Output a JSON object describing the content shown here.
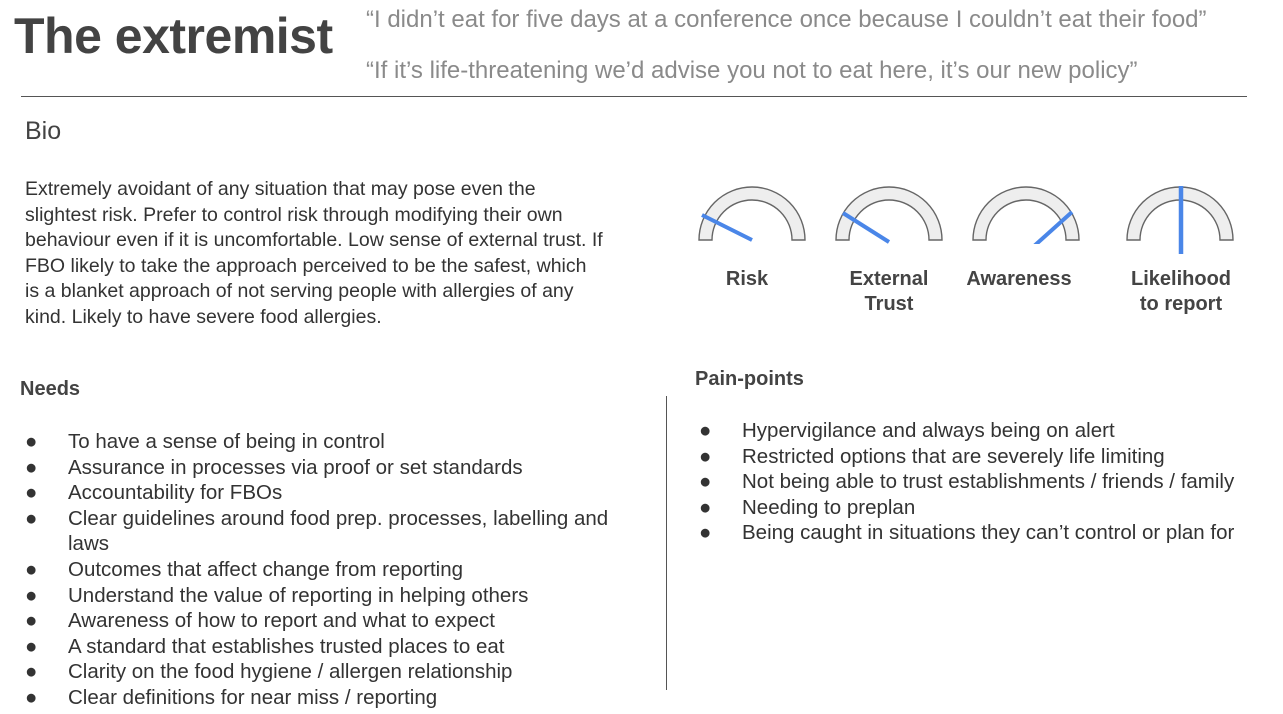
{
  "title": "The extremist",
  "quotes": [
    "“I didn’t eat for five days at a conference once because I couldn’t eat their food”",
    "“If it’s life-threatening we’d advise you not to eat here, it’s our new policy”"
  ],
  "bio": {
    "heading": "Bio",
    "text": "Extremely avoidant of any situation that may pose even the slightest risk. Prefer to control risk through modifying their own behaviour even if it is uncomfortable. Low sense of external trust. If FBO likely to take the approach perceived to be the safest, which is a blanket approach of not serving people with allergies of any kind. Likely to have severe food allergies."
  },
  "gauges": [
    {
      "label_line1": "Risk",
      "label_line2": "",
      "needle_color": "#4a86e8"
    },
    {
      "label_line1": "External",
      "label_line2": "Trust",
      "needle_color": "#4a86e8"
    },
    {
      "label_line1": "Awareness",
      "label_line2": "",
      "needle_color": "#4a86e8"
    },
    {
      "label_line1": "Likelihood",
      "label_line2": "to report",
      "needle_color": "#4a86e8"
    }
  ],
  "needs": {
    "heading": "Needs",
    "items": [
      "To have a sense of being in control",
      "Assurance in processes via proof or set standards",
      "Accountability for FBOs",
      "Clear guidelines around food prep. processes, labelling and laws",
      "Outcomes that affect change from reporting",
      "Understand the value of reporting in helping others",
      "Awareness of how to report and what to expect",
      "A standard that establishes trusted places to eat",
      "Clarity on the food hygiene / allergen relationship",
      "Clear definitions for near miss / reporting"
    ]
  },
  "pain_points": {
    "heading": "Pain-points",
    "items": [
      "Hypervigilance and always being on alert",
      "Restricted options that are severely life limiting",
      "Not being able to trust establishments / friends / family",
      "Needing to preplan",
      "Being caught in situations they can’t control or plan for"
    ]
  },
  "bullet_glyph": "●"
}
